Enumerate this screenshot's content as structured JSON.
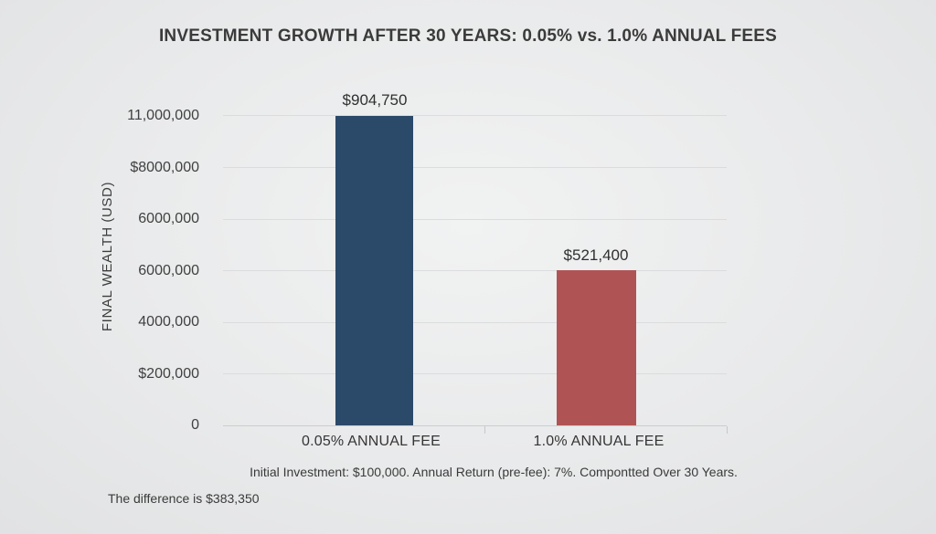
{
  "chart_data": {
    "type": "bar",
    "title": "INVESTMENT GROWTH AFTER 30 YEARS: 0.05% vs. 1.0% ANNUAL FEES",
    "ylabel": "FINAL WEALTH (USD)",
    "categories": [
      "0.05% ANNUAL FEE",
      "1.0% ANNUAL FEE"
    ],
    "values": [
      904750,
      521400
    ],
    "value_labels": [
      "$904,750",
      "$521,400"
    ],
    "bar_colors": [
      "#2b4a69",
      "#b05355"
    ],
    "ytick_labels": [
      "11,000,000",
      "$8000,000",
      "6000,000",
      "6000,000",
      "4000,000",
      "$200,000",
      "0"
    ],
    "ylim_pixels_note": "",
    "grid": "on",
    "legend": "none",
    "caption": "Initial Investment: $100,000. Annual Return (pre-fee): 7%. Compontted Over 30 Years.",
    "footnote": "The difference is $383,350"
  },
  "colors": {
    "background": "#e8e9ea",
    "gridline": "#dbdcdd",
    "axis_line": "#cccdce",
    "text": "#3a3a3a"
  }
}
